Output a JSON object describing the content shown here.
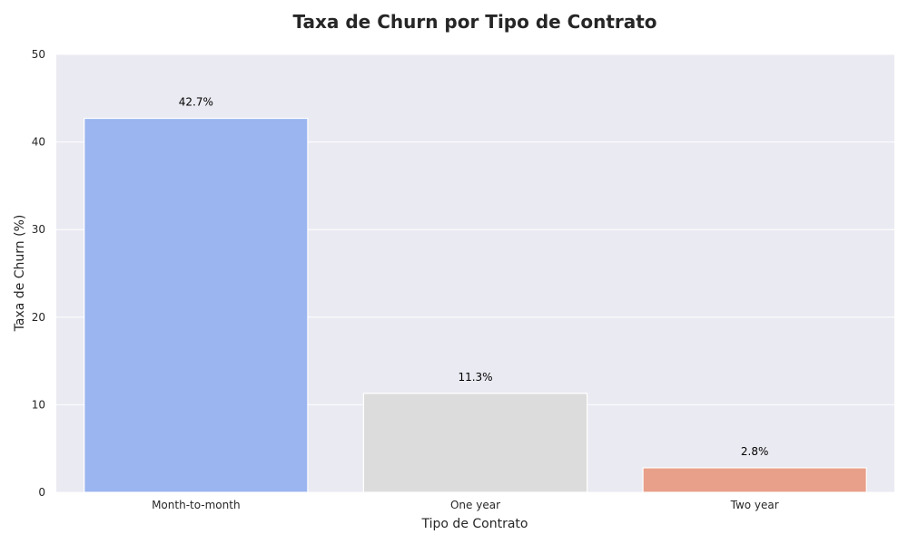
{
  "chart_data": {
    "type": "bar",
    "title": "Taxa de Churn por Tipo de Contrato",
    "xlabel": "Tipo de Contrato",
    "ylabel": "Taxa de Churn (%)",
    "categories": [
      "Month-to-month",
      "One year",
      "Two year"
    ],
    "values": [
      42.7,
      11.3,
      2.8
    ],
    "data_labels": [
      "42.7%",
      "11.3%",
      "2.8%"
    ],
    "ylim": [
      0,
      50
    ],
    "yticks": [
      "0",
      "10",
      "20",
      "30",
      "40",
      "50"
    ],
    "colors": [
      "#9bb5f0",
      "#dcdcdc",
      "#e8a08a"
    ],
    "plot_background": "#eaeaf2",
    "grid": true
  }
}
